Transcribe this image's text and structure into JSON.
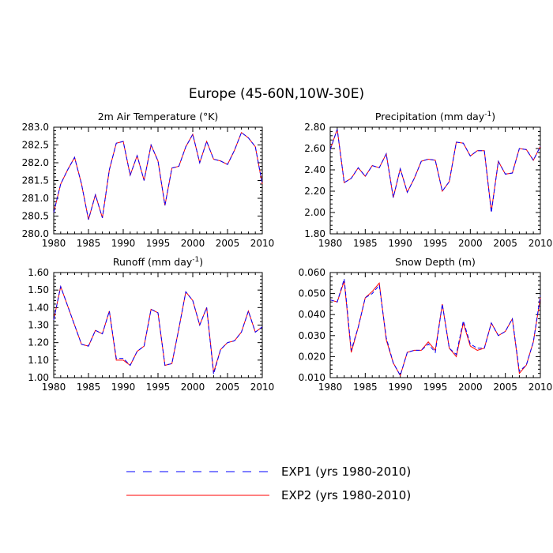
{
  "title": "Europe (45-60N,10W-30E)",
  "legend": [
    {
      "label": "EXP1 (yrs 1980-2010)",
      "color": "#0000ff",
      "style": "dashed"
    },
    {
      "label": "EXP2 (yrs 1980-2010)",
      "color": "#ff0000",
      "style": "solid"
    }
  ],
  "chart_data": [
    {
      "type": "line",
      "title": "2m Air Temperature (°K)",
      "x": [
        1980,
        1981,
        1982,
        1983,
        1984,
        1985,
        1986,
        1987,
        1988,
        1989,
        1990,
        1991,
        1992,
        1993,
        1994,
        1995,
        1996,
        1997,
        1998,
        1999,
        2000,
        2001,
        2002,
        2003,
        2004,
        2005,
        2006,
        2007,
        2008,
        2009,
        2010
      ],
      "xlim": [
        1980,
        2010
      ],
      "xticks": [
        1980,
        1985,
        1990,
        1995,
        2000,
        2005,
        2010
      ],
      "ylim": [
        280.0,
        283.0
      ],
      "yticks": [
        "280.0",
        "280.5",
        "281.0",
        "281.5",
        "282.0",
        "282.5",
        "283.0"
      ],
      "series": [
        {
          "name": "EXP1 (yrs 1980-2010)",
          "values": [
            280.6,
            281.4,
            281.8,
            282.15,
            281.4,
            280.4,
            281.1,
            280.45,
            281.8,
            282.55,
            282.6,
            281.65,
            282.2,
            281.5,
            282.5,
            282.05,
            280.8,
            281.85,
            281.9,
            282.45,
            282.8,
            282.0,
            282.6,
            282.1,
            282.05,
            281.95,
            282.35,
            282.85,
            282.7,
            282.45,
            281.4
          ]
        },
        {
          "name": "EXP2 (yrs 1980-2010)",
          "values": [
            280.6,
            281.4,
            281.8,
            282.15,
            281.4,
            280.4,
            281.1,
            280.45,
            281.8,
            282.55,
            282.6,
            281.65,
            282.2,
            281.5,
            282.5,
            282.05,
            280.8,
            281.85,
            281.9,
            282.45,
            282.8,
            282.0,
            282.6,
            282.1,
            282.05,
            281.95,
            282.35,
            282.85,
            282.7,
            282.45,
            281.4
          ]
        }
      ]
    },
    {
      "type": "line",
      "title": "Precipitation (mm day",
      "title_sup": "-1",
      "title_end": ")",
      "x": [
        1980,
        1981,
        1982,
        1983,
        1984,
        1985,
        1986,
        1987,
        1988,
        1989,
        1990,
        1991,
        1992,
        1993,
        1994,
        1995,
        1996,
        1997,
        1998,
        1999,
        2000,
        2001,
        2002,
        2003,
        2004,
        2005,
        2006,
        2007,
        2008,
        2009,
        2010
      ],
      "xlim": [
        1980,
        2010
      ],
      "xticks": [
        1980,
        1985,
        1990,
        1995,
        2000,
        2005,
        2010
      ],
      "ylim": [
        1.8,
        2.8
      ],
      "yticks": [
        "1.80",
        "2.00",
        "2.20",
        "2.40",
        "2.60",
        "2.80"
      ],
      "series": [
        {
          "name": "EXP1 (yrs 1980-2010)",
          "values": [
            2.59,
            2.78,
            2.28,
            2.32,
            2.42,
            2.34,
            2.44,
            2.42,
            2.55,
            2.14,
            2.41,
            2.19,
            2.32,
            2.48,
            2.5,
            2.49,
            2.2,
            2.29,
            2.66,
            2.65,
            2.53,
            2.58,
            2.58,
            2.0,
            2.48,
            2.36,
            2.37,
            2.6,
            2.59,
            2.49,
            2.62
          ]
        },
        {
          "name": "EXP2 (yrs 1980-2010)",
          "values": [
            2.59,
            2.78,
            2.28,
            2.32,
            2.42,
            2.34,
            2.44,
            2.42,
            2.55,
            2.14,
            2.41,
            2.19,
            2.32,
            2.48,
            2.5,
            2.49,
            2.2,
            2.29,
            2.66,
            2.65,
            2.53,
            2.58,
            2.58,
            2.01,
            2.48,
            2.36,
            2.37,
            2.6,
            2.59,
            2.49,
            2.62
          ]
        }
      ]
    },
    {
      "type": "line",
      "title": "Runoff (mm day",
      "title_sup": "-1",
      "title_end": ")",
      "x": [
        1980,
        1981,
        1982,
        1983,
        1984,
        1985,
        1986,
        1987,
        1988,
        1989,
        1990,
        1991,
        1992,
        1993,
        1994,
        1995,
        1996,
        1997,
        1998,
        1999,
        2000,
        2001,
        2002,
        2003,
        2004,
        2005,
        2006,
        2007,
        2008,
        2009,
        2010
      ],
      "xlim": [
        1980,
        2010
      ],
      "xticks": [
        1980,
        1985,
        1990,
        1995,
        2000,
        2005,
        2010
      ],
      "ylim": [
        1.0,
        1.6
      ],
      "yticks": [
        "1.00",
        "1.10",
        "1.20",
        "1.30",
        "1.40",
        "1.50",
        "1.60"
      ],
      "series": [
        {
          "name": "EXP1 (yrs 1980-2010)",
          "values": [
            1.33,
            1.52,
            1.41,
            1.3,
            1.19,
            1.18,
            1.27,
            1.25,
            1.38,
            1.11,
            1.11,
            1.07,
            1.15,
            1.18,
            1.39,
            1.37,
            1.07,
            1.08,
            1.28,
            1.49,
            1.44,
            1.3,
            1.4,
            1.02,
            1.16,
            1.2,
            1.21,
            1.26,
            1.38,
            1.26,
            1.29
          ]
        },
        {
          "name": "EXP2 (yrs 1980-2010)",
          "values": [
            1.33,
            1.52,
            1.41,
            1.3,
            1.19,
            1.18,
            1.27,
            1.25,
            1.38,
            1.1,
            1.1,
            1.07,
            1.15,
            1.18,
            1.39,
            1.37,
            1.07,
            1.08,
            1.28,
            1.49,
            1.44,
            1.3,
            1.4,
            1.03,
            1.16,
            1.2,
            1.21,
            1.26,
            1.38,
            1.26,
            1.29
          ]
        }
      ]
    },
    {
      "type": "line",
      "title": "Snow Depth (m)",
      "x": [
        1980,
        1981,
        1982,
        1983,
        1984,
        1985,
        1986,
        1987,
        1988,
        1989,
        1990,
        1991,
        1992,
        1993,
        1994,
        1995,
        1996,
        1997,
        1998,
        1999,
        2000,
        2001,
        2002,
        2003,
        2004,
        2005,
        2006,
        2007,
        2008,
        2009,
        2010
      ],
      "xlim": [
        1980,
        2010
      ],
      "xticks": [
        1980,
        1985,
        1990,
        1995,
        2000,
        2005,
        2010
      ],
      "ylim": [
        0.01,
        0.06
      ],
      "yticks": [
        "0.010",
        "0.020",
        "0.030",
        "0.040",
        "0.050",
        "0.060"
      ],
      "series": [
        {
          "name": "EXP1 (yrs 1980-2010)",
          "values": [
            0.047,
            0.046,
            0.057,
            0.023,
            0.034,
            0.048,
            0.05,
            0.054,
            0.029,
            0.017,
            0.011,
            0.022,
            0.023,
            0.023,
            0.026,
            0.022,
            0.045,
            0.024,
            0.021,
            0.037,
            0.026,
            0.024,
            0.024,
            0.036,
            0.03,
            0.032,
            0.038,
            0.013,
            0.016,
            0.027,
            0.049
          ]
        },
        {
          "name": "EXP2 (yrs 1980-2010)",
          "values": [
            0.047,
            0.046,
            0.056,
            0.022,
            0.034,
            0.048,
            0.051,
            0.055,
            0.028,
            0.017,
            0.011,
            0.022,
            0.023,
            0.023,
            0.027,
            0.023,
            0.045,
            0.024,
            0.02,
            0.036,
            0.025,
            0.023,
            0.024,
            0.036,
            0.03,
            0.032,
            0.038,
            0.012,
            0.016,
            0.027,
            0.048
          ]
        }
      ]
    }
  ]
}
